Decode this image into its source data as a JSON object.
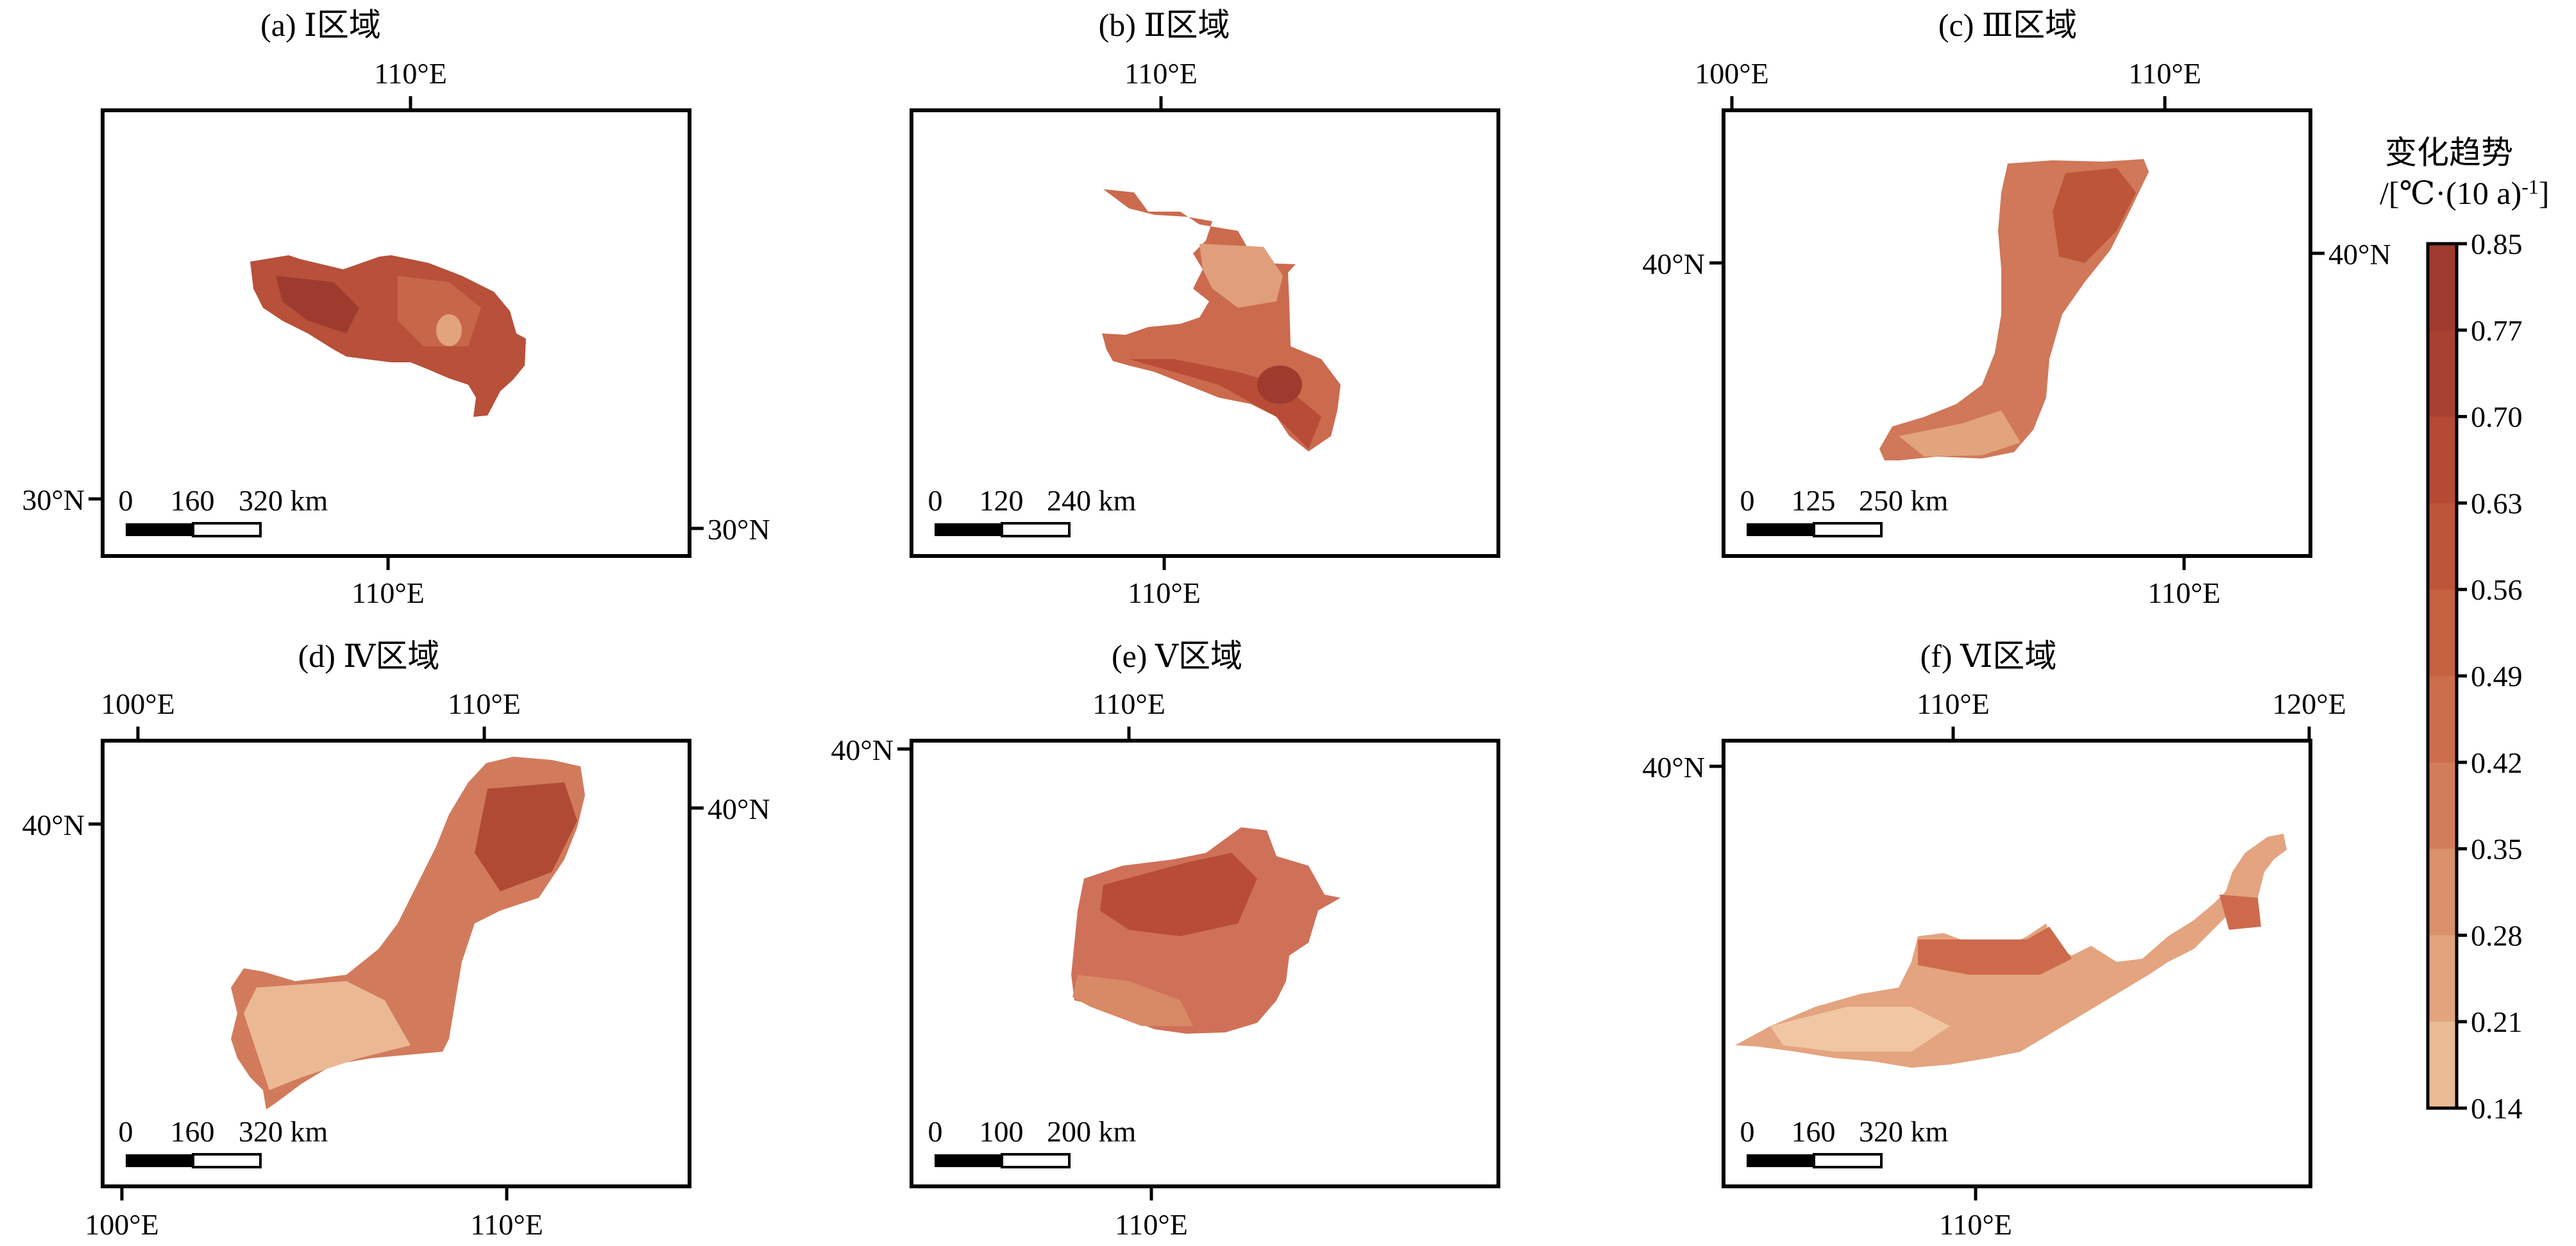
{
  "colorbar": {
    "title_line1": "变化趋势",
    "title_line2": "/[℃·(10 a)",
    "title_sup": "-1",
    "title_end": "]",
    "ticks": [
      "0.85",
      "0.77",
      "0.70",
      "0.63",
      "0.56",
      "0.49",
      "0.42",
      "0.35",
      "0.28",
      "0.21",
      "0.14"
    ],
    "colors": [
      "#9e3b2e",
      "#a8402f",
      "#b44a33",
      "#bd5538",
      "#c4613f",
      "#cb6e4b",
      "#d27d59",
      "#da9068",
      "#e2a47c",
      "#ebbb95",
      "#f6d6b5"
    ]
  },
  "panels": [
    {
      "id": "a",
      "title": "(a) Ⅰ区域",
      "top_labels": [
        "110°E"
      ],
      "bottom_labels": [
        "110°E"
      ],
      "left_labels": [
        "30°N"
      ],
      "right_labels": [
        "30°N"
      ],
      "scale": {
        "n0": "0",
        "n1": "160",
        "n2": "320 km"
      },
      "fill": "#b8503a"
    },
    {
      "id": "b",
      "title": "(b) Ⅱ区域",
      "top_labels": [
        "110°E"
      ],
      "bottom_labels": [
        "110°E"
      ],
      "left_labels": [],
      "right_labels": [],
      "scale": {
        "n0": "0",
        "n1": "120",
        "n2": "240 km"
      },
      "fill": "#cc6a4e"
    },
    {
      "id": "c",
      "title": "(c) Ⅲ区域",
      "top_labels": [
        "100°E",
        "110°E"
      ],
      "bottom_labels": [
        "110°E"
      ],
      "left_labels": [
        "40°N"
      ],
      "right_labels": [
        "40°N"
      ],
      "scale": {
        "n0": "0",
        "n1": "125",
        "n2": "250 km"
      },
      "fill": "#d07859"
    },
    {
      "id": "d",
      "title": "(d) Ⅳ区域",
      "top_labels": [
        "100°E",
        "110°E"
      ],
      "bottom_labels": [
        "100°E",
        "110°E"
      ],
      "left_labels": [
        "40°N"
      ],
      "right_labels": [
        "40°N"
      ],
      "scale": {
        "n0": "0",
        "n1": "160",
        "n2": "320 km"
      },
      "fill": "#d27b5c"
    },
    {
      "id": "e",
      "title": "(e) Ⅴ区域",
      "top_labels": [
        "110°E"
      ],
      "bottom_labels": [
        "110°E"
      ],
      "left_labels": [
        "40°N"
      ],
      "right_labels": [],
      "scale": {
        "n0": "0",
        "n1": "100",
        "n2": "200 km"
      },
      "fill": "#cf7158"
    },
    {
      "id": "f",
      "title": "(f) Ⅵ区域",
      "top_labels": [
        "110°E",
        "120°E"
      ],
      "bottom_labels": [
        "110°E"
      ],
      "left_labels": [
        "40°N"
      ],
      "right_labels": [],
      "scale": {
        "n0": "0",
        "n1": "160",
        "n2": "320 km"
      },
      "fill": "#e3a47f"
    }
  ]
}
